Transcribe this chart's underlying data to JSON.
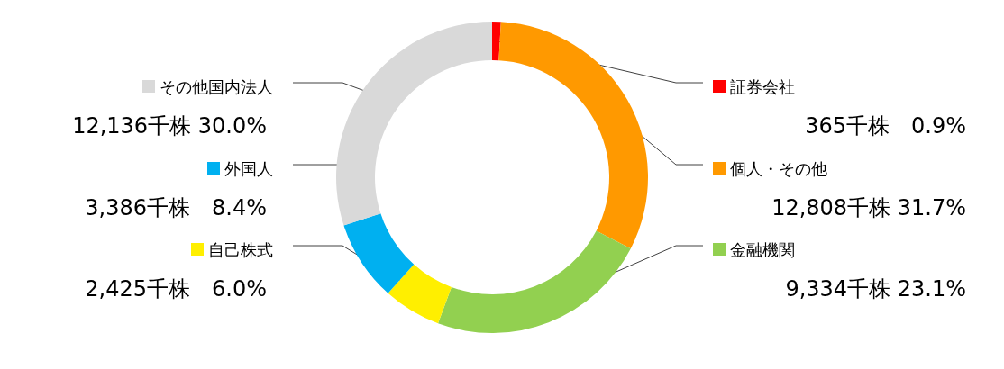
{
  "chart_data": {
    "type": "donut",
    "categories": [
      "証券会社",
      "個人・その他",
      "金融機関",
      "自己株式",
      "外国人",
      "その他国内法人"
    ],
    "values": [
      365,
      12808,
      9334,
      2425,
      3386,
      12136
    ],
    "colors": [
      "#ff0000",
      "#ff9900",
      "#92d050",
      "#ffef00",
      "#00b0f0",
      "#d9d9d9"
    ],
    "value_labels": [
      "365千株　0.9%",
      "12,808千株 31.7%",
      "9,334千株 23.1%",
      "2,425千株　6.0%",
      "3,386千株　8.4%",
      "12,136千株 30.0%"
    ],
    "legend": "right"
  }
}
